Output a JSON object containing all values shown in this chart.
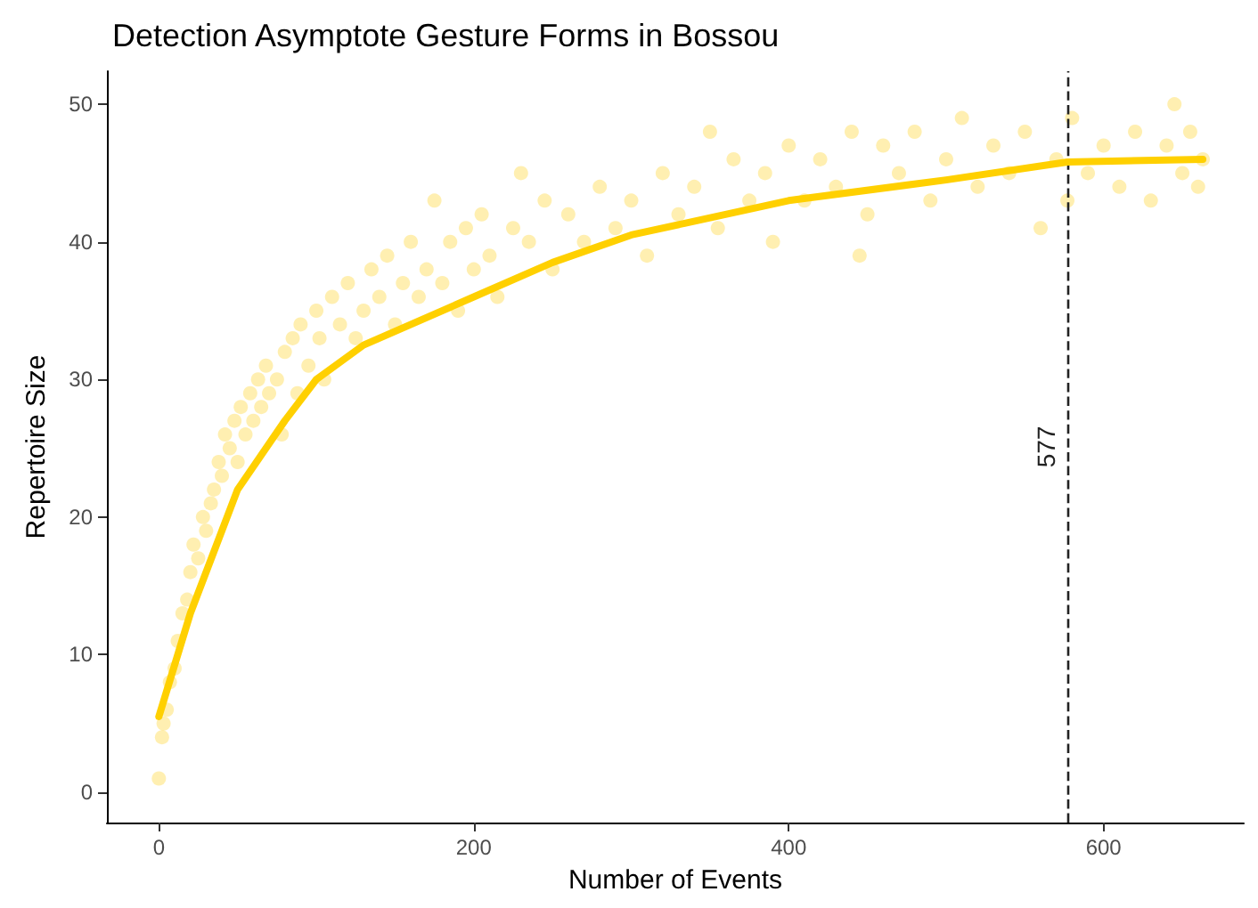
{
  "chart_data": {
    "type": "scatter",
    "title": "Detection Asymptote Gesture Forms in Bossou",
    "xlabel": "Number of Events",
    "ylabel": "Repertoire Size",
    "xlim": [
      -33,
      689
    ],
    "ylim": [
      -2.2,
      52.4
    ],
    "xticks": [
      0,
      200,
      400,
      600
    ],
    "yticks": [
      0,
      10,
      20,
      30,
      40,
      50
    ],
    "series": [
      {
        "marker": "circle",
        "color": "#ffd21f",
        "x": [
          0,
          2,
          3,
          5,
          7,
          10,
          12,
          15,
          18,
          20,
          22,
          25,
          28,
          30,
          33,
          35,
          38,
          40,
          42,
          45,
          48,
          50,
          52,
          55,
          58,
          60,
          63,
          65,
          68,
          70,
          75,
          78,
          80,
          85,
          88,
          90,
          95,
          100,
          102,
          105,
          110,
          115,
          120,
          125,
          130,
          135,
          140,
          145,
          150,
          155,
          160,
          165,
          170,
          175,
          180,
          185,
          190,
          195,
          200,
          205,
          210,
          215,
          225,
          230,
          235,
          245,
          250,
          260,
          270,
          280,
          290,
          300,
          310,
          320,
          330,
          340,
          350,
          355,
          365,
          375,
          385,
          390,
          400,
          410,
          420,
          430,
          440,
          445,
          450,
          460,
          470,
          480,
          490,
          500,
          510,
          520,
          530,
          540,
          550,
          560,
          570,
          577,
          580,
          590,
          600,
          610,
          620,
          630,
          640,
          645,
          650,
          655,
          660,
          663
        ],
        "values": [
          1,
          4,
          5,
          6,
          8,
          9,
          11,
          13,
          14,
          16,
          18,
          17,
          20,
          19,
          21,
          22,
          24,
          23,
          26,
          25,
          27,
          24,
          28,
          26,
          29,
          27,
          30,
          28,
          31,
          29,
          30,
          26,
          32,
          33,
          29,
          34,
          31,
          35,
          33,
          30,
          36,
          34,
          37,
          33,
          35,
          38,
          36,
          39,
          34,
          37,
          40,
          36,
          38,
          43,
          37,
          40,
          35,
          41,
          38,
          42,
          39,
          36,
          41,
          45,
          40,
          43,
          38,
          42,
          40,
          44,
          41,
          43,
          39,
          45,
          42,
          44,
          48,
          41,
          46,
          43,
          45,
          40,
          47,
          43,
          46,
          44,
          48,
          39,
          42,
          47,
          45,
          48,
          43,
          46,
          49,
          44,
          47,
          45,
          48,
          41,
          46,
          43,
          49,
          45,
          47,
          44,
          48,
          43,
          47,
          50,
          45,
          48,
          44,
          46
        ]
      },
      {
        "type": "line",
        "marker": "none",
        "color": "#ffd000",
        "x": [
          0,
          20,
          50,
          80,
          100,
          130,
          200,
          250,
          300,
          400,
          500,
          577,
          663
        ],
        "values": [
          5.5,
          13,
          22,
          27,
          30,
          32.5,
          36,
          38.5,
          40.5,
          43,
          44.5,
          45.8,
          46
        ]
      }
    ],
    "ref_lines": [
      {
        "axis": "x",
        "value": 577,
        "label": "577",
        "color": "#222222",
        "line_style": "dashed"
      }
    ]
  }
}
